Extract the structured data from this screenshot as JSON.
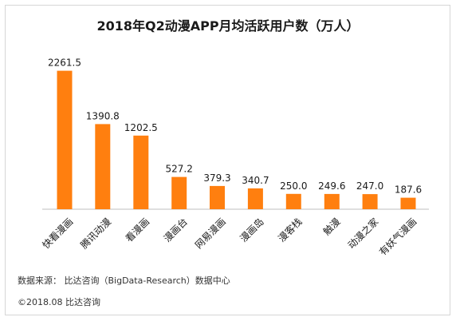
{
  "chart_data": {
    "type": "bar",
    "title": "2018年Q2动漫APP月均活跃用户数（万人）",
    "categories": [
      "快看漫画",
      "腾讯动漫",
      "看漫画",
      "漫画台",
      "网易漫画",
      "漫画岛",
      "漫客栈",
      "触漫",
      "动漫之家",
      "有妖气漫画"
    ],
    "values": [
      2261.5,
      1390.8,
      1202.5,
      527.2,
      379.3,
      340.7,
      250.0,
      249.6,
      247.0,
      187.6
    ],
    "value_labels": [
      "2261.5",
      "1390.8",
      "1202.5",
      "527.2",
      "379.3",
      "340.7",
      "250.0",
      "249.6",
      "247.0",
      "187.6"
    ],
    "ylim": [
      0,
      2400
    ],
    "bar_color": "#FF7F0F",
    "grid": false,
    "legend": "none"
  },
  "footer": {
    "source": "数据来源： 比达咨询（BigData-Research）数据中心",
    "copyright": "©2018.08  比达咨询"
  }
}
